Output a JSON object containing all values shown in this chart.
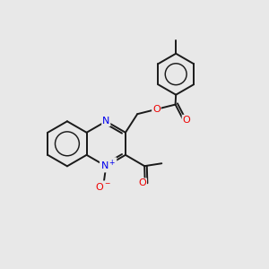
{
  "bg_color": "#e8e8e8",
  "bond_color": "#1a1a1a",
  "bond_width": 1.4,
  "atom_colors": {
    "N": "#0000ee",
    "O": "#ee0000",
    "C": "#1a1a1a"
  },
  "fig_size": [
    3.0,
    3.0
  ],
  "dpi": 100,
  "xlim": [
    0,
    10
  ],
  "ylim": [
    0,
    10
  ]
}
